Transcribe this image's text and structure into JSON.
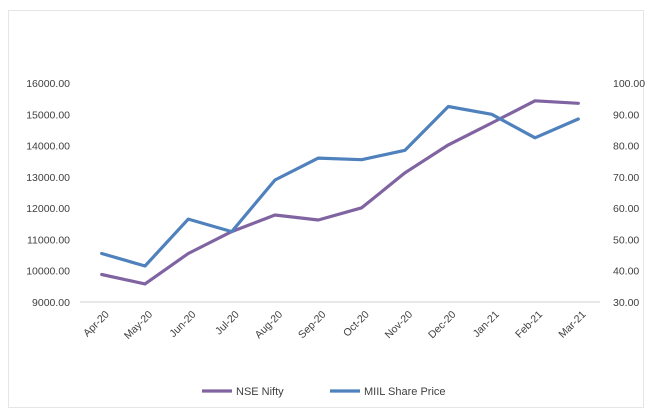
{
  "chart_data": {
    "type": "line",
    "categories": [
      "Apr-20",
      "May-20",
      "Jun-20",
      "Jul-20",
      "Aug-20",
      "Sep-20",
      "Oct-20",
      "Nov-20",
      "Dec-20",
      "Jan-21",
      "Feb-21",
      "Mar-21"
    ],
    "series": [
      {
        "name": "NSE Nifty",
        "axis": "left",
        "color": "#8064a2",
        "values": [
          9880,
          9580,
          10550,
          11250,
          11780,
          11620,
          12010,
          13130,
          14020,
          14720,
          15430,
          15350
        ]
      },
      {
        "name": "MIIL Share Price",
        "axis": "right",
        "color": "#4f81bd",
        "values": [
          45.5,
          41.5,
          56.5,
          52.5,
          69.0,
          76.0,
          75.5,
          78.5,
          92.5,
          90.0,
          82.5,
          88.5
        ]
      }
    ],
    "y_left": {
      "min": 9000,
      "max": 16000,
      "step": 1000,
      "tick_labels": [
        "9000.00",
        "10000.00",
        "11000.00",
        "12000.00",
        "13000.00",
        "14000.00",
        "15000.00",
        "16000.00"
      ]
    },
    "y_right": {
      "min": 30,
      "max": 100,
      "step": 10,
      "tick_labels": [
        "30.00",
        "40.00",
        "50.00",
        "60.00",
        "70.00",
        "80.00",
        "90.00",
        "100.00"
      ]
    },
    "grid": false,
    "legend": "bottom",
    "legend_labels": [
      "NSE Nifty",
      "MIIL Share Price"
    ]
  }
}
